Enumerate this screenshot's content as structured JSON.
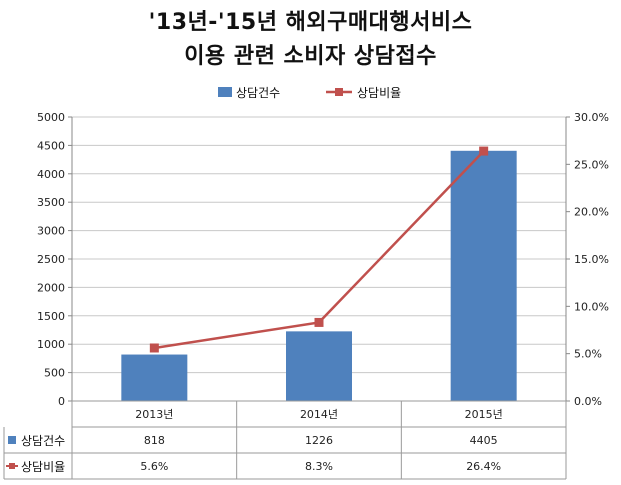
{
  "chart_data": {
    "type": "bar+line",
    "title": [
      "'13년-'15년 해외구매대행서비스",
      "이용 관련 소비자 상담접수"
    ],
    "categories": [
      "2013년",
      "2014년",
      "2015년"
    ],
    "series": [
      {
        "name": "상담건수",
        "kind": "bar",
        "axis": "left",
        "values": [
          818,
          1226,
          4405
        ],
        "labels": [
          "818",
          "1226",
          "4405"
        ],
        "color": "#4f81bd"
      },
      {
        "name": "상담비율",
        "kind": "line",
        "axis": "right",
        "values": [
          5.6,
          8.3,
          26.4
        ],
        "labels": [
          "5.6%",
          "8.3%",
          "26.4%"
        ],
        "color": "#c0504d"
      }
    ],
    "left_axis": {
      "min": 0,
      "max": 5000,
      "step": 500,
      "ticks": [
        "0",
        "500",
        "1000",
        "1500",
        "2000",
        "2500",
        "3000",
        "3500",
        "4000",
        "4500",
        "5000"
      ]
    },
    "right_axis": {
      "min": 0,
      "max": 30,
      "step": 5,
      "ticks": [
        "0.0%",
        "5.0%",
        "10.0%",
        "15.0%",
        "20.0%",
        "25.0%",
        "30.0%"
      ]
    },
    "legend_position": "top",
    "grid": true,
    "data_table": true
  }
}
